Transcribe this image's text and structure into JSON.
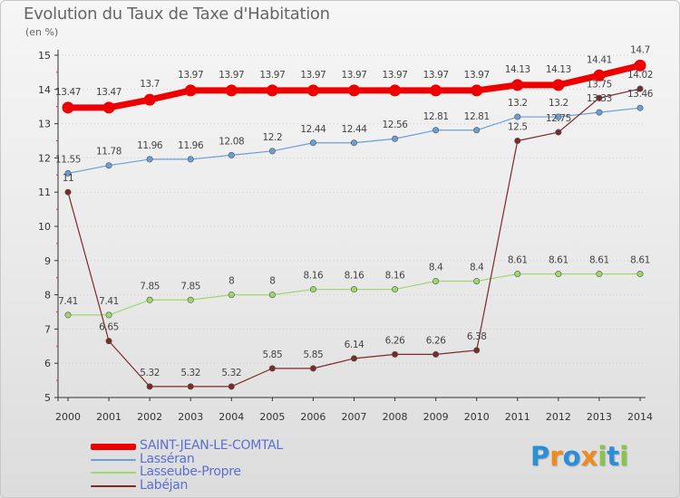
{
  "chart_data": {
    "type": "line",
    "title": "Evolution du Taux de Taxe d'Habitation",
    "unit": "(en %)",
    "x": [
      "2000",
      "2001",
      "2002",
      "2003",
      "2004",
      "2005",
      "2006",
      "2007",
      "2008",
      "2009",
      "2010",
      "2011",
      "2012",
      "2013",
      "2014"
    ],
    "ylim": [
      5,
      15
    ],
    "yticks": [
      "5",
      "6",
      "7",
      "8",
      "9",
      "10",
      "11",
      "12",
      "13",
      "14",
      "15"
    ],
    "grid": "horizontal dotted",
    "series": [
      {
        "name": "SAINT-JEAN-LE-COMTAL",
        "color": "#ee0000",
        "labels": [
          "13.47",
          "13.47",
          "13.7",
          "13.97",
          "13.97",
          "13.97",
          "13.97",
          "13.97",
          "13.97",
          "13.97",
          "13.97",
          "14.13",
          "14.13",
          "14.41",
          "14.7"
        ],
        "values": [
          13.47,
          13.47,
          13.7,
          13.97,
          13.97,
          13.97,
          13.97,
          13.97,
          13.97,
          13.97,
          13.97,
          14.13,
          14.13,
          14.41,
          14.7
        ]
      },
      {
        "name": "Lasséran",
        "color": "#6b9fd4",
        "labels": [
          "11.55",
          "11.78",
          "11.96",
          "11.96",
          "12.08",
          "12.2",
          "12.44",
          "12.44",
          "12.56",
          "12.81",
          "12.81",
          "13.2",
          "13.2",
          "13.33",
          "13.46"
        ],
        "values": [
          11.55,
          11.78,
          11.96,
          11.96,
          12.08,
          12.2,
          12.44,
          12.44,
          12.56,
          12.81,
          12.81,
          13.2,
          13.2,
          13.33,
          13.46
        ]
      },
      {
        "name": "Lasseube-Propre",
        "color": "#9ed86c",
        "labels": [
          "7.41",
          "7.41",
          "7.85",
          "7.85",
          "8",
          "8",
          "8.16",
          "8.16",
          "8.16",
          "8.4",
          "8.4",
          "8.61",
          "8.61",
          "8.61",
          "8.61"
        ],
        "values": [
          7.41,
          7.41,
          7.85,
          7.85,
          8,
          8,
          8.16,
          8.16,
          8.16,
          8.4,
          8.4,
          8.61,
          8.61,
          8.61,
          8.61
        ]
      },
      {
        "name": "Labéjan",
        "color": "#7a2a2a",
        "labels": [
          "11",
          "6.65",
          "5.32",
          "5.32",
          "5.32",
          "5.85",
          "5.85",
          "6.14",
          "6.26",
          "6.26",
          "6.38",
          "12.5",
          "12.75",
          "13.75",
          "14.02"
        ],
        "values": [
          11,
          6.65,
          5.32,
          5.32,
          5.32,
          5.85,
          5.85,
          6.14,
          6.26,
          6.26,
          6.38,
          12.5,
          12.75,
          13.75,
          14.02
        ]
      }
    ],
    "legend_placement": "bottom-left"
  },
  "logo": {
    "letters": [
      "P",
      "r",
      "o",
      "x",
      "i",
      "t",
      "i"
    ],
    "colors": [
      "#2a8fd6",
      "#f08a1c",
      "#2a8fd6",
      "#f08a1c",
      "#8bc34a",
      "#2a8fd6",
      "#8bc34a"
    ]
  }
}
